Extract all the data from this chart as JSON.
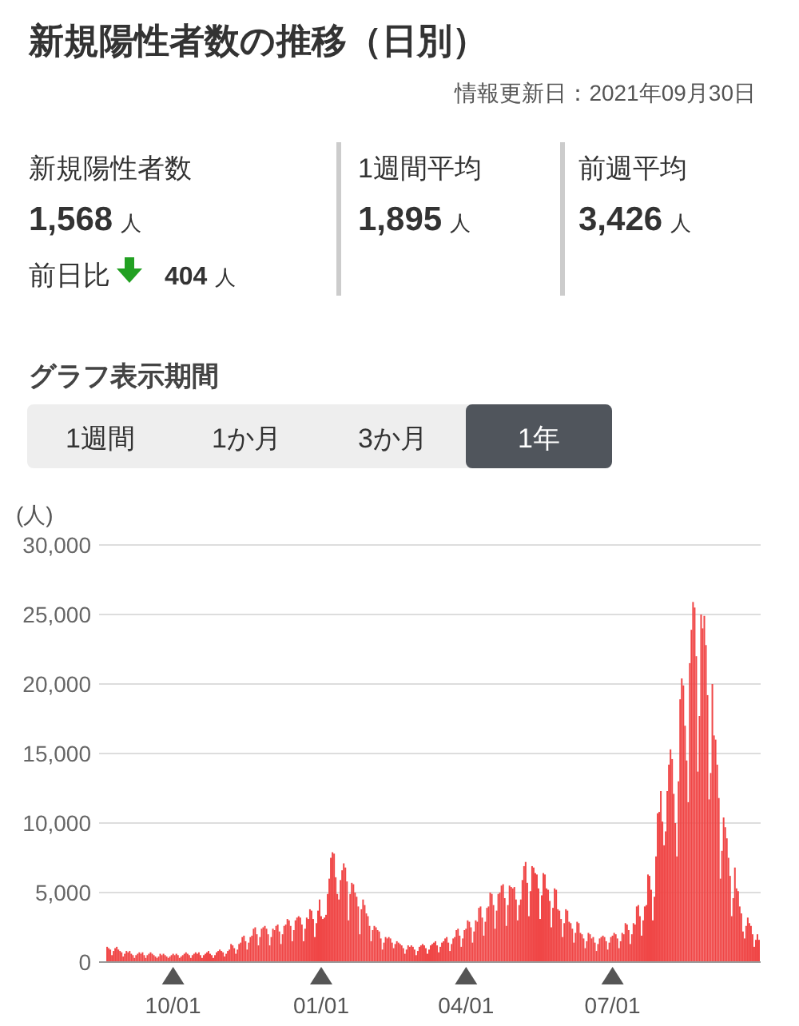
{
  "chart_data": [
    {
      "type": "other",
      "title": "新規陽性者数の推移（日別）",
      "subtitle": "情報更新日：2021年09月30日",
      "annotations": [
        "新規陽性者数",
        "1,568",
        "人",
        "前日比",
        "404",
        "人",
        "1週間平均",
        "1,895",
        "人",
        "前週平均",
        "3,426",
        "人"
      ]
    },
    {
      "type": "bar",
      "ylabel": "(人)",
      "color": "#f04646",
      "grid": "y",
      "annotations": [
        "グラフ表示期間",
        "1週間",
        "1か月",
        "3か月",
        "1年"
      ],
      "xlim": [
        "2020-08-16",
        "2021-10-01"
      ],
      "xticks": [
        {
          "value": "2020-10-01",
          "label": "10/01"
        },
        {
          "value": "2021-01-01",
          "label": "01/01"
        },
        {
          "value": "2021-04-01",
          "label": "04/01"
        },
        {
          "value": "2021-07-01",
          "label": "07/01"
        }
      ],
      "ylim": [
        0,
        30000
      ],
      "yticks": [
        0,
        {
          "value": 5000,
          "label": "5,000"
        },
        {
          "value": 10000,
          "label": "10,000"
        },
        {
          "value": 15000,
          "label": "15,000"
        },
        {
          "value": 20000,
          "label": "20,000"
        },
        {
          "value": 25000,
          "label": "25,000"
        },
        {
          "value": 30000,
          "label": "30,000"
        }
      ],
      "x": [
        "2020-08-21",
        "2020-08-22",
        "2020-08-23",
        "2020-08-24",
        "2020-08-25",
        "2020-08-26",
        "2020-08-27",
        "2020-08-28",
        "2020-08-29",
        "2020-08-30",
        "2020-08-31",
        "2020-09-01",
        "2020-09-02",
        "2020-09-03",
        "2020-09-04",
        "2020-09-05",
        "2020-09-06",
        "2020-09-07",
        "2020-09-08",
        "2020-09-09",
        "2020-09-10",
        "2020-09-11",
        "2020-09-12",
        "2020-09-13",
        "2020-09-14",
        "2020-09-15",
        "2020-09-16",
        "2020-09-17",
        "2020-09-18",
        "2020-09-19",
        "2020-09-20",
        "2020-09-21",
        "2020-09-22",
        "2020-09-23",
        "2020-09-24",
        "2020-09-25",
        "2020-09-26",
        "2020-09-27",
        "2020-09-28",
        "2020-09-29",
        "2020-09-30",
        "2020-10-01",
        "2020-10-02",
        "2020-10-03",
        "2020-10-04",
        "2020-10-05",
        "2020-10-06",
        "2020-10-07",
        "2020-10-08",
        "2020-10-09",
        "2020-10-10",
        "2020-10-11",
        "2020-10-12",
        "2020-10-13",
        "2020-10-14",
        "2020-10-15",
        "2020-10-16",
        "2020-10-17",
        "2020-10-18",
        "2020-10-19",
        "2020-10-20",
        "2020-10-21",
        "2020-10-22",
        "2020-10-23",
        "2020-10-24",
        "2020-10-25",
        "2020-10-26",
        "2020-10-27",
        "2020-10-28",
        "2020-10-29",
        "2020-10-30",
        "2020-10-31",
        "2020-11-01",
        "2020-11-02",
        "2020-11-03",
        "2020-11-04",
        "2020-11-05",
        "2020-11-06",
        "2020-11-07",
        "2020-11-08",
        "2020-11-09",
        "2020-11-10",
        "2020-11-11",
        "2020-11-12",
        "2020-11-13",
        "2020-11-14",
        "2020-11-15",
        "2020-11-16",
        "2020-11-17",
        "2020-11-18",
        "2020-11-19",
        "2020-11-20",
        "2020-11-21",
        "2020-11-22",
        "2020-11-23",
        "2020-11-24",
        "2020-11-25",
        "2020-11-26",
        "2020-11-27",
        "2020-11-28",
        "2020-11-29",
        "2020-11-30",
        "2020-12-01",
        "2020-12-02",
        "2020-12-03",
        "2020-12-04",
        "2020-12-05",
        "2020-12-06",
        "2020-12-07",
        "2020-12-08",
        "2020-12-09",
        "2020-12-10",
        "2020-12-11",
        "2020-12-12",
        "2020-12-13",
        "2020-12-14",
        "2020-12-15",
        "2020-12-16",
        "2020-12-17",
        "2020-12-18",
        "2020-12-19",
        "2020-12-20",
        "2020-12-21",
        "2020-12-22",
        "2020-12-23",
        "2020-12-24",
        "2020-12-25",
        "2020-12-26",
        "2020-12-27",
        "2020-12-28",
        "2020-12-29",
        "2020-12-30",
        "2020-12-31",
        "2021-01-01",
        "2021-01-02",
        "2021-01-03",
        "2021-01-04",
        "2021-01-05",
        "2021-01-06",
        "2021-01-07",
        "2021-01-08",
        "2021-01-09",
        "2021-01-10",
        "2021-01-11",
        "2021-01-12",
        "2021-01-13",
        "2021-01-14",
        "2021-01-15",
        "2021-01-16",
        "2021-01-17",
        "2021-01-18",
        "2021-01-19",
        "2021-01-20",
        "2021-01-21",
        "2021-01-22",
        "2021-01-23",
        "2021-01-24",
        "2021-01-25",
        "2021-01-26",
        "2021-01-27",
        "2021-01-28",
        "2021-01-29",
        "2021-01-30",
        "2021-01-31",
        "2021-02-01",
        "2021-02-02",
        "2021-02-03",
        "2021-02-04",
        "2021-02-05",
        "2021-02-06",
        "2021-02-07",
        "2021-02-08",
        "2021-02-09",
        "2021-02-10",
        "2021-02-11",
        "2021-02-12",
        "2021-02-13",
        "2021-02-14",
        "2021-02-15",
        "2021-02-16",
        "2021-02-17",
        "2021-02-18",
        "2021-02-19",
        "2021-02-20",
        "2021-02-21",
        "2021-02-22",
        "2021-02-23",
        "2021-02-24",
        "2021-02-25",
        "2021-02-26",
        "2021-02-27",
        "2021-02-28",
        "2021-03-01",
        "2021-03-02",
        "2021-03-03",
        "2021-03-04",
        "2021-03-05",
        "2021-03-06",
        "2021-03-07",
        "2021-03-08",
        "2021-03-09",
        "2021-03-10",
        "2021-03-11",
        "2021-03-12",
        "2021-03-13",
        "2021-03-14",
        "2021-03-15",
        "2021-03-16",
        "2021-03-17",
        "2021-03-18",
        "2021-03-19",
        "2021-03-20",
        "2021-03-21",
        "2021-03-22",
        "2021-03-23",
        "2021-03-24",
        "2021-03-25",
        "2021-03-26",
        "2021-03-27",
        "2021-03-28",
        "2021-03-29",
        "2021-03-30",
        "2021-03-31",
        "2021-04-01",
        "2021-04-02",
        "2021-04-03",
        "2021-04-04",
        "2021-04-05",
        "2021-04-06",
        "2021-04-07",
        "2021-04-08",
        "2021-04-09",
        "2021-04-10",
        "2021-04-11",
        "2021-04-12",
        "2021-04-13",
        "2021-04-14",
        "2021-04-15",
        "2021-04-16",
        "2021-04-17",
        "2021-04-18",
        "2021-04-19",
        "2021-04-20",
        "2021-04-21",
        "2021-04-22",
        "2021-04-23",
        "2021-04-24",
        "2021-04-25",
        "2021-04-26",
        "2021-04-27",
        "2021-04-28",
        "2021-04-29",
        "2021-04-30",
        "2021-05-01",
        "2021-05-02",
        "2021-05-03",
        "2021-05-04",
        "2021-05-05",
        "2021-05-06",
        "2021-05-07",
        "2021-05-08",
        "2021-05-09",
        "2021-05-10",
        "2021-05-11",
        "2021-05-12",
        "2021-05-13",
        "2021-05-14",
        "2021-05-15",
        "2021-05-16",
        "2021-05-17",
        "2021-05-18",
        "2021-05-19",
        "2021-05-20",
        "2021-05-21",
        "2021-05-22",
        "2021-05-23",
        "2021-05-24",
        "2021-05-25",
        "2021-05-26",
        "2021-05-27",
        "2021-05-28",
        "2021-05-29",
        "2021-05-30",
        "2021-05-31",
        "2021-06-01",
        "2021-06-02",
        "2021-06-03",
        "2021-06-04",
        "2021-06-05",
        "2021-06-06",
        "2021-06-07",
        "2021-06-08",
        "2021-06-09",
        "2021-06-10",
        "2021-06-11",
        "2021-06-12",
        "2021-06-13",
        "2021-06-14",
        "2021-06-15",
        "2021-06-16",
        "2021-06-17",
        "2021-06-18",
        "2021-06-19",
        "2021-06-20",
        "2021-06-21",
        "2021-06-22",
        "2021-06-23",
        "2021-06-24",
        "2021-06-25",
        "2021-06-26",
        "2021-06-27",
        "2021-06-28",
        "2021-06-29",
        "2021-06-30",
        "2021-07-01",
        "2021-07-02",
        "2021-07-03",
        "2021-07-04",
        "2021-07-05",
        "2021-07-06",
        "2021-07-07",
        "2021-07-08",
        "2021-07-09",
        "2021-07-10",
        "2021-07-11",
        "2021-07-12",
        "2021-07-13",
        "2021-07-14",
        "2021-07-15",
        "2021-07-16",
        "2021-07-17",
        "2021-07-18",
        "2021-07-19",
        "2021-07-20",
        "2021-07-21",
        "2021-07-22",
        "2021-07-23",
        "2021-07-24",
        "2021-07-25",
        "2021-07-26",
        "2021-07-27",
        "2021-07-28",
        "2021-07-29",
        "2021-07-30",
        "2021-07-31",
        "2021-08-01",
        "2021-08-02",
        "2021-08-03",
        "2021-08-04",
        "2021-08-05",
        "2021-08-06",
        "2021-08-07",
        "2021-08-08",
        "2021-08-09",
        "2021-08-10",
        "2021-08-11",
        "2021-08-12",
        "2021-08-13",
        "2021-08-14",
        "2021-08-15",
        "2021-08-16",
        "2021-08-17",
        "2021-08-18",
        "2021-08-19",
        "2021-08-20",
        "2021-08-21",
        "2021-08-22",
        "2021-08-23",
        "2021-08-24",
        "2021-08-25",
        "2021-08-26",
        "2021-08-27",
        "2021-08-28",
        "2021-08-29",
        "2021-08-30",
        "2021-08-31",
        "2021-09-01",
        "2021-09-02",
        "2021-09-03",
        "2021-09-04",
        "2021-09-05",
        "2021-09-06",
        "2021-09-07",
        "2021-09-08",
        "2021-09-09",
        "2021-09-10",
        "2021-09-11",
        "2021-09-12",
        "2021-09-13",
        "2021-09-14",
        "2021-09-15",
        "2021-09-16",
        "2021-09-17",
        "2021-09-18",
        "2021-09-19",
        "2021-09-20",
        "2021-09-21",
        "2021-09-22",
        "2021-09-23",
        "2021-09-24",
        "2021-09-25",
        "2021-09-26",
        "2021-09-27",
        "2021-09-28",
        "2021-09-29",
        "2021-09-30"
      ],
      "values": [
        1100,
        1000,
        900,
        500,
        800,
        1000,
        1100,
        900,
        800,
        700,
        400,
        600,
        800,
        700,
        800,
        600,
        500,
        300,
        500,
        600,
        700,
        600,
        700,
        500,
        300,
        500,
        600,
        700,
        600,
        500,
        400,
        300,
        400,
        600,
        500,
        600,
        500,
        400,
        300,
        400,
        500,
        600,
        500,
        600,
        500,
        300,
        400,
        500,
        600,
        700,
        600,
        500,
        300,
        500,
        600,
        700,
        600,
        700,
        500,
        300,
        500,
        600,
        700,
        800,
        600,
        500,
        300,
        500,
        700,
        800,
        900,
        800,
        700,
        400,
        600,
        800,
        900,
        1300,
        1200,
        1000,
        600,
        900,
        1300,
        1400,
        1800,
        1900,
        1500,
        900,
        1400,
        1800,
        1900,
        2400,
        2500,
        2000,
        1200,
        1800,
        2400,
        2500,
        2600,
        2400,
        2000,
        1200,
        1800,
        2400,
        2300,
        2600,
        2700,
        2200,
        1300,
        2000,
        2600,
        2700,
        3100,
        3000,
        2600,
        1500,
        2300,
        3000,
        3200,
        3300,
        3200,
        2700,
        1500,
        2400,
        3200,
        3100,
        3800,
        3700,
        3100,
        1800,
        2800,
        3700,
        4500,
        3300,
        3100,
        3200,
        3400,
        4900,
        6000,
        7500,
        7900,
        7800,
        6100,
        4900,
        4500,
        5900,
        6600,
        7100,
        6800,
        5800,
        3000,
        4900,
        5700,
        5600,
        5000,
        4700,
        4000,
        2000,
        3800,
        4500,
        4100,
        3500,
        3300,
        2600,
        1500,
        2300,
        2600,
        2500,
        2300,
        2200,
        1700,
        900,
        1400,
        1800,
        1700,
        1800,
        1700,
        1400,
        1000,
        1300,
        1500,
        1400,
        1300,
        1200,
        1000,
        600,
        900,
        1200,
        1100,
        1200,
        1100,
        900,
        500,
        800,
        1100,
        1200,
        1300,
        1200,
        1000,
        600,
        900,
        1200,
        1300,
        1400,
        1500,
        1200,
        700,
        1100,
        1400,
        1500,
        1700,
        1800,
        1400,
        800,
        1300,
        1700,
        1800,
        2300,
        2400,
        1900,
        1100,
        1700,
        2300,
        2400,
        3000,
        2900,
        2500,
        1400,
        2200,
        3000,
        2900,
        3900,
        4000,
        3200,
        1900,
        2900,
        3900,
        4000,
        5000,
        4900,
        4100,
        2400,
        3700,
        4900,
        5000,
        5500,
        5600,
        4600,
        2600,
        4100,
        5500,
        5400,
        5300,
        5400,
        4500,
        3000,
        4100,
        4500,
        5900,
        6900,
        7200,
        5700,
        3300,
        5100,
        6900,
        6800,
        6400,
        6300,
        5300,
        3100,
        4800,
        6400,
        6300,
        5300,
        5200,
        4400,
        2500,
        3900,
        5300,
        5200,
        3800,
        3700,
        3100,
        1800,
        2800,
        3800,
        3700,
        2900,
        2800,
        2400,
        1400,
        2100,
        2900,
        2800,
        2100,
        2000,
        1700,
        1000,
        1500,
        2100,
        2000,
        1700,
        1800,
        1400,
        800,
        1300,
        1700,
        1800,
        1900,
        1800,
        1500,
        900,
        1400,
        1800,
        1900,
        2100,
        2000,
        1700,
        1000,
        1500,
        2100,
        2000,
        2800,
        2700,
        2300,
        1300,
        2000,
        2800,
        2700,
        4000,
        4100,
        3300,
        1900,
        3000,
        4000,
        4100,
        6300,
        6200,
        5200,
        3000,
        4700,
        7600,
        10700,
        10800,
        12300,
        10100,
        8400,
        9400,
        12300,
        14200,
        15300,
        14600,
        12100,
        10000,
        7600,
        13000,
        18900,
        20400,
        19900,
        17000,
        14500,
        11500,
        21500,
        23900,
        25900,
        25500,
        22000,
        13700,
        17700,
        25000,
        24000,
        24900,
        22800,
        19200,
        11700,
        13600,
        20000,
        16300,
        16000,
        14200,
        11800,
        6000,
        8000,
        10400,
        9700,
        8900,
        7500,
        6200,
        3300,
        4600,
        6800,
        5300,
        5100,
        4000,
        3500,
        2200,
        1700,
        2600,
        3200,
        2800,
        2600,
        2000,
        1100,
        1600,
        2000,
        1600
      ]
    }
  ]
}
